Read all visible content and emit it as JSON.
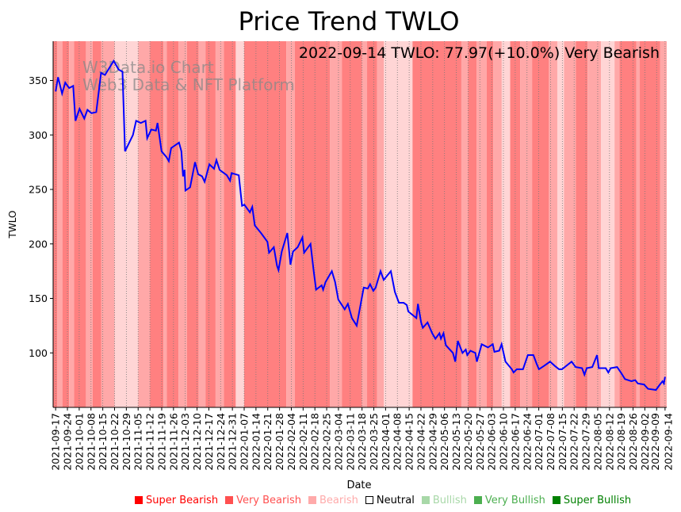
{
  "chart_data": {
    "type": "line",
    "title": "Price Trend TWLO",
    "annotation": "2022-09-14 TWLO: 77.97(+10.0%) Very Bearish",
    "watermark": [
      "W3Data.io Chart",
      "Web3 Data & NFT Platform"
    ],
    "xlabel": "Date",
    "ylabel": "TWLO",
    "x_unit": "days since 2021-09-17",
    "xlim": [
      -1.5,
      363
    ],
    "ylim": [
      50,
      386
    ],
    "grid": "vertical dotted at x ticks",
    "line_color": "#0000ff",
    "yticks": [
      100,
      150,
      200,
      250,
      300,
      350
    ],
    "xticks": [
      "2021-09-17",
      "2021-09-24",
      "2021-10-01",
      "2021-10-08",
      "2021-10-15",
      "2021-10-22",
      "2021-10-29",
      "2021-11-05",
      "2021-11-12",
      "2021-11-19",
      "2021-11-26",
      "2021-12-03",
      "2021-12-10",
      "2021-12-17",
      "2021-12-24",
      "2021-12-31",
      "2022-01-07",
      "2022-01-14",
      "2022-01-21",
      "2022-01-28",
      "2022-02-04",
      "2022-02-11",
      "2022-02-18",
      "2022-02-25",
      "2022-03-04",
      "2022-03-11",
      "2022-03-18",
      "2022-03-25",
      "2022-04-01",
      "2022-04-08",
      "2022-04-15",
      "2022-04-22",
      "2022-04-29",
      "2022-05-06",
      "2022-05-13",
      "2022-05-20",
      "2022-05-27",
      "2022-06-03",
      "2022-06-10",
      "2022-06-17",
      "2022-06-24",
      "2022-07-01",
      "2022-07-08",
      "2022-07-15",
      "2022-07-22",
      "2022-07-29",
      "2022-08-05",
      "2022-08-12",
      "2022-08-19",
      "2022-08-26",
      "2022-09-02",
      "2022-09-09",
      "2022-09-14"
    ],
    "xtick_days": [
      0,
      7,
      14,
      21,
      28,
      35,
      42,
      49,
      56,
      63,
      70,
      77,
      84,
      91,
      98,
      105,
      112,
      119,
      126,
      133,
      140,
      147,
      154,
      161,
      168,
      175,
      182,
      189,
      196,
      203,
      210,
      217,
      224,
      231,
      238,
      245,
      252,
      259,
      266,
      273,
      280,
      287,
      294,
      301,
      308,
      315,
      322,
      329,
      336,
      343,
      350,
      357,
      362
    ],
    "series": [
      {
        "name": "TWLO",
        "x": [
          0,
          1.4,
          3.8,
          5.7,
          8,
          10.4,
          11.8,
          14.2,
          17,
          18.9,
          21.3,
          24.1,
          27,
          29.3,
          34.5,
          37.4,
          39.7,
          41.2,
          45.9,
          47.8,
          50.6,
          53.4,
          54.4,
          56.8,
          59.6,
          60.5,
          62.9,
          65.7,
          67.2,
          68.6,
          73.3,
          74.7,
          75.7,
          76.6,
          77.1,
          79.9,
          82.8,
          84.7,
          87,
          88.5,
          89.4,
          91.3,
          94.1,
          95.5,
          97.4,
          101.7,
          103.6,
          104.5,
          108.8,
          110.7,
          112.1,
          115.4,
          116.8,
          118.3,
          122,
          125.8,
          126.8,
          129.6,
          131.5,
          132.4,
          134.3,
          137.6,
          139.5,
          141,
          143.8,
          146.6,
          147.6,
          151.4,
          153.3,
          154.7,
          158,
          158.9,
          160.3,
          164.1,
          166,
          167.9,
          171.7,
          173.6,
          176,
          178.8,
          181.2,
          183,
          185.4,
          186.8,
          188.7,
          190.1,
          193,
          194.9,
          199.1,
          201.5,
          203.9,
          206.7,
          208.6,
          209.5,
          214.3,
          215.2,
          217.1,
          218.1,
          220.9,
          223.7,
          225.6,
          228,
          228.9,
          230.4,
          231.8,
          236,
          237.4,
          238.9,
          241.7,
          243.6,
          244.5,
          246.4,
          249.3,
          250.2,
          253.1,
          256.8,
          259.7,
          260.6,
          263.5,
          264.9,
          267.2,
          271,
          272,
          273.9,
          277.6,
          280.5,
          283.8,
          285.7,
          287.1,
          290,
          291.9,
          293.7,
          296.6,
          299,
          300.8,
          306.5,
          308.9,
          312.7,
          314.1,
          315.5,
          318.8,
          321.6,
          322.6,
          326.8,
          328.3,
          329.7,
          333.5,
          335.8,
          338.2,
          342,
          344.3,
          345.8,
          349.5,
          351.9,
          356.6,
          358.5,
          360.5,
          361.3,
          362
        ],
        "y": [
          340,
          353,
          338,
          348,
          343,
          345,
          313,
          324,
          315,
          323,
          320,
          321,
          357,
          355,
          368,
          360,
          358,
          285,
          300,
          313,
          311,
          313,
          297,
          305,
          304,
          311,
          285,
          280,
          276,
          288,
          293,
          285,
          262,
          268,
          249,
          252,
          275,
          264,
          262,
          257,
          262,
          273,
          269,
          277,
          268,
          263,
          258,
          265,
          263,
          235,
          236,
          229,
          234,
          217,
          210,
          202,
          192,
          197,
          180,
          176,
          193,
          210,
          181,
          193,
          197,
          206,
          192,
          200,
          175,
          158,
          162,
          158,
          165,
          175,
          165,
          149,
          140,
          145,
          132,
          125,
          145,
          160,
          159,
          163,
          157,
          160,
          175,
          167,
          175,
          156,
          146,
          146,
          144,
          138,
          132,
          145,
          128,
          123,
          128,
          118,
          113,
          118,
          113,
          118,
          107,
          100,
          92,
          111,
          100,
          103,
          98,
          102,
          100,
          92,
          108,
          105,
          108,
          101,
          102,
          108,
          92,
          85,
          82,
          85,
          85,
          98,
          98,
          90,
          85,
          88,
          90,
          92,
          88,
          85,
          85,
          92,
          87,
          86,
          80,
          86,
          87,
          98,
          86,
          86,
          82,
          86,
          87,
          82,
          76,
          74,
          75,
          72,
          71,
          67,
          66,
          70,
          74,
          72,
          78
        ]
      }
    ],
    "sentiment_bands": [
      {
        "start": -1.5,
        "end": 1,
        "s": "Super Bearish"
      },
      {
        "start": 1,
        "end": 4,
        "s": "Very Bearish"
      },
      {
        "start": 4,
        "end": 8,
        "s": "Super Bearish"
      },
      {
        "start": 8,
        "end": 11,
        "s": "Very Bearish"
      },
      {
        "start": 11,
        "end": 18,
        "s": "Super Bearish"
      },
      {
        "start": 18,
        "end": 22,
        "s": "Very Bearish"
      },
      {
        "start": 22,
        "end": 27,
        "s": "Super Bearish"
      },
      {
        "start": 27,
        "end": 35,
        "s": "Very Bearish"
      },
      {
        "start": 35,
        "end": 49,
        "s": "Bearish"
      },
      {
        "start": 49,
        "end": 56,
        "s": "Very Bearish"
      },
      {
        "start": 56,
        "end": 64,
        "s": "Super Bearish"
      },
      {
        "start": 64,
        "end": 66,
        "s": "Very Bearish"
      },
      {
        "start": 66,
        "end": 73,
        "s": "Super Bearish"
      },
      {
        "start": 73,
        "end": 78,
        "s": "Very Bearish"
      },
      {
        "start": 78,
        "end": 85,
        "s": "Super Bearish"
      },
      {
        "start": 85,
        "end": 89,
        "s": "Very Bearish"
      },
      {
        "start": 89,
        "end": 95,
        "s": "Super Bearish"
      },
      {
        "start": 95,
        "end": 100,
        "s": "Very Bearish"
      },
      {
        "start": 100,
        "end": 107,
        "s": "Super Bearish"
      },
      {
        "start": 107,
        "end": 112,
        "s": "Bearish"
      },
      {
        "start": 112,
        "end": 137,
        "s": "Super Bearish"
      },
      {
        "start": 137,
        "end": 142,
        "s": "Very Bearish"
      },
      {
        "start": 142,
        "end": 163,
        "s": "Super Bearish"
      },
      {
        "start": 163,
        "end": 170,
        "s": "Very Bearish"
      },
      {
        "start": 170,
        "end": 182,
        "s": "Super Bearish"
      },
      {
        "start": 182,
        "end": 185,
        "s": "Very Bearish"
      },
      {
        "start": 185,
        "end": 191,
        "s": "Super Bearish"
      },
      {
        "start": 191,
        "end": 195,
        "s": "Very Bearish"
      },
      {
        "start": 195,
        "end": 212,
        "s": "Bearish"
      },
      {
        "start": 212,
        "end": 241,
        "s": "Super Bearish"
      },
      {
        "start": 241,
        "end": 245,
        "s": "Very Bearish"
      },
      {
        "start": 245,
        "end": 250,
        "s": "Super Bearish"
      },
      {
        "start": 250,
        "end": 256,
        "s": "Very Bearish"
      },
      {
        "start": 256,
        "end": 260,
        "s": "Super Bearish"
      },
      {
        "start": 260,
        "end": 265,
        "s": "Very Bearish"
      },
      {
        "start": 265,
        "end": 270,
        "s": "Bearish"
      },
      {
        "start": 270,
        "end": 276,
        "s": "Super Bearish"
      },
      {
        "start": 276,
        "end": 283,
        "s": "Very Bearish"
      },
      {
        "start": 283,
        "end": 293,
        "s": "Super Bearish"
      },
      {
        "start": 293,
        "end": 298,
        "s": "Very Bearish"
      },
      {
        "start": 298,
        "end": 302,
        "s": "Bearish"
      },
      {
        "start": 302,
        "end": 309,
        "s": "Very Bearish"
      },
      {
        "start": 309,
        "end": 316,
        "s": "Super Bearish"
      },
      {
        "start": 316,
        "end": 324,
        "s": "Very Bearish"
      },
      {
        "start": 324,
        "end": 332,
        "s": "Bearish"
      },
      {
        "start": 332,
        "end": 335,
        "s": "Very Bearish"
      },
      {
        "start": 335,
        "end": 345,
        "s": "Super Bearish"
      },
      {
        "start": 345,
        "end": 347,
        "s": "Very Bearish"
      },
      {
        "start": 347,
        "end": 359,
        "s": "Super Bearish"
      },
      {
        "start": 359,
        "end": 363,
        "s": "Very Bearish"
      }
    ],
    "band_colors": {
      "Super Bearish": "#ff8080",
      "Very Bearish": "#ffa8a8",
      "Bearish": "#ffd5d5"
    },
    "legend": [
      {
        "label": "Super Bearish",
        "color": "#ff0000"
      },
      {
        "label": "Very Bearish",
        "color": "#ff5050"
      },
      {
        "label": "Bearish",
        "color": "#ffaaaa"
      },
      {
        "label": "Neutral",
        "color": "#000000"
      },
      {
        "label": "Bullish",
        "color": "#a8d8a8"
      },
      {
        "label": "Very Bullish",
        "color": "#4caf50"
      },
      {
        "label": "Super Bullish",
        "color": "#008000"
      }
    ]
  }
}
